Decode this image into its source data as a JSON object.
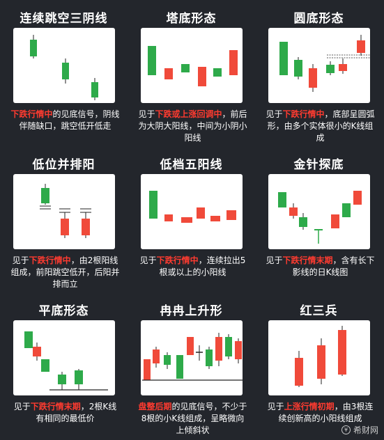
{
  "colors": {
    "up": "#f04a3a",
    "down": "#2eaa4a",
    "line": "#222222",
    "background": "#23262c"
  },
  "panels": [
    {
      "title": "连续跳空三阴线",
      "desc": [
        {
          "t": "下跌行情中",
          "h": true
        },
        {
          "t": "的见底信号，阴线伴随缺口，跳空低开低走",
          "h": false
        }
      ]
    },
    {
      "title": "塔底形态",
      "desc": [
        {
          "t": "见于",
          "h": false
        },
        {
          "t": "下跌或上涨回调中",
          "h": true
        },
        {
          "t": "，前后为大阴大阳线，中间为小阴小阳线",
          "h": false
        }
      ]
    },
    {
      "title": "圆底形态",
      "desc": [
        {
          "t": "见于",
          "h": false
        },
        {
          "t": "下跌行情中",
          "h": true
        },
        {
          "t": "，底部呈圆弧形，由多个实体很小的K线组成",
          "h": false
        }
      ]
    },
    {
      "title": "低位并排阳",
      "desc": [
        {
          "t": "见于",
          "h": false
        },
        {
          "t": "下跌行情中",
          "h": true
        },
        {
          "t": "，由2根阳线组成，前阳跳空低开，后阳并排而立",
          "h": false
        }
      ]
    },
    {
      "title": "低档五阳线",
      "desc": [
        {
          "t": "见于",
          "h": false
        },
        {
          "t": "下跌行情中",
          "h": true
        },
        {
          "t": "，连续拉出5根或以上的小阳线",
          "h": false
        }
      ]
    },
    {
      "title": "金针探底",
      "desc": [
        {
          "t": "见于",
          "h": false
        },
        {
          "t": "下跌行情末期",
          "h": true
        },
        {
          "t": "，含有长下影线的日K线图",
          "h": false
        }
      ]
    },
    {
      "title": "平底形态",
      "desc": [
        {
          "t": "见于",
          "h": false
        },
        {
          "t": "下跌行情末期",
          "h": true
        },
        {
          "t": "，2根K线有相同的最低价",
          "h": false
        }
      ]
    },
    {
      "title": "冉冉上升形",
      "desc": [
        {
          "t": "盘整后期",
          "h": true
        },
        {
          "t": "的见底信号，不少于8根的小K线组成，呈略微向上倾斜状",
          "h": false
        }
      ]
    },
    {
      "title": "红三兵",
      "desc": [
        {
          "t": "见于",
          "h": false
        },
        {
          "t": "上涨行情初期",
          "h": true
        },
        {
          "t": "，由3根连续创新高的小阳线组成",
          "h": false
        }
      ]
    }
  ],
  "watermark": {
    "icon": "logo-icon",
    "text": "希财网"
  }
}
